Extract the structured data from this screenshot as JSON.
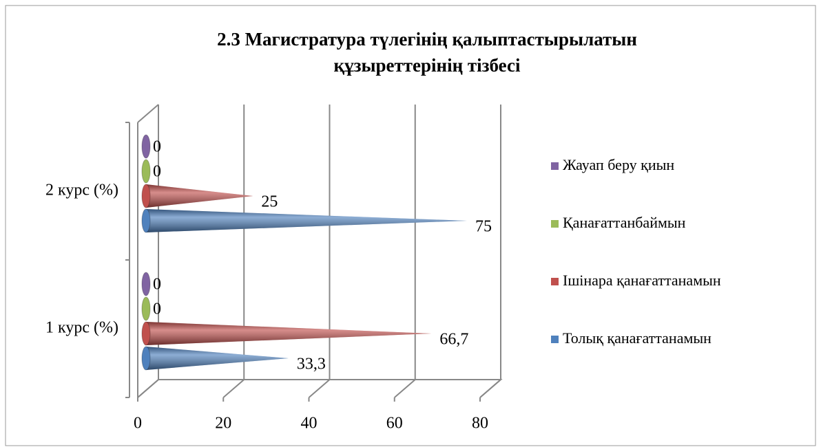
{
  "chart_data": {
    "type": "cone-bar",
    "title": "2.3 Магистратура түлегінің қалыптастырылатын құзыреттерінің тізбесі",
    "categories": [
      "1 курс (%)",
      "2 курс (%)"
    ],
    "series": [
      {
        "name": "Толық қанағаттанамын",
        "color": "#4f81bd",
        "values": [
          33.3,
          75
        ],
        "value_labels": [
          "33,3",
          "75"
        ]
      },
      {
        "name": "Ішінара қанағаттанамын",
        "color": "#c0504d",
        "values": [
          66.7,
          25
        ],
        "value_labels": [
          "66,7",
          "25"
        ]
      },
      {
        "name": "Қанағаттанбаймын",
        "color": "#9bbb59",
        "values": [
          0,
          0
        ]
      },
      {
        "name": "Жауап беру қиын",
        "color": "#8064a2",
        "values": [
          0,
          0
        ]
      }
    ],
    "xlim": [
      0,
      80
    ],
    "xticks": [
      0,
      20,
      40,
      60,
      80
    ],
    "grid": true,
    "legend": "right"
  }
}
